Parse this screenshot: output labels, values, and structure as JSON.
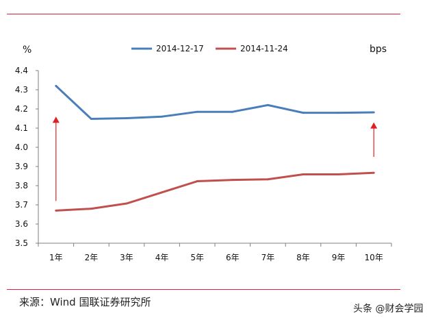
{
  "chart_data": {
    "type": "line",
    "categories": [
      "1年",
      "2年",
      "3年",
      "4年",
      "5年",
      "6年",
      "7年",
      "8年",
      "9年",
      "10年"
    ],
    "series": [
      {
        "name": "2014-12-17",
        "color": "#4a7ebb",
        "values": [
          4.32,
          4.148,
          4.152,
          4.16,
          4.185,
          4.185,
          4.22,
          4.18,
          4.18,
          4.182
        ]
      },
      {
        "name": "2014-11-24",
        "color": "#c0504d",
        "values": [
          3.67,
          3.68,
          3.707,
          3.765,
          3.823,
          3.83,
          3.833,
          3.859,
          3.859,
          3.867
        ]
      }
    ],
    "ylabel": "%",
    "y2label": "bps",
    "ylim": [
      3.5,
      4.4
    ],
    "yticks": [
      3.5,
      3.6,
      3.7,
      3.8,
      3.9,
      4.0,
      4.1,
      4.2,
      4.3,
      4.4
    ],
    "ytick_labels": [
      "3.5",
      "3.6",
      "3.7",
      "3.8",
      "3.9",
      "4.0",
      "4.1",
      "4.2",
      "4.3",
      "4.4"
    ],
    "legend_position": "top-center",
    "grid": false,
    "arrow_color": "#e02020",
    "annotations": [
      {
        "type": "arrow",
        "category": "1年",
        "from": 3.72,
        "to": 4.16
      },
      {
        "type": "arrow",
        "category": "10年",
        "from": 3.95,
        "to": 4.13
      }
    ]
  },
  "source": "来源：Wind 国联证券研究所",
  "watermark": "头条 @财会学园"
}
